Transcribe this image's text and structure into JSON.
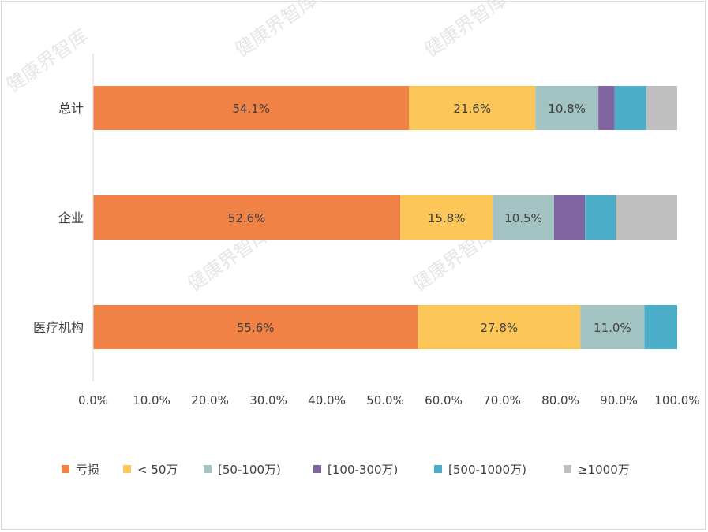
{
  "watermark_text": "健康界智库",
  "chart_data": {
    "type": "bar",
    "orientation": "horizontal",
    "stacked": true,
    "categories": [
      "总计",
      "企业",
      "医疗机构"
    ],
    "series": [
      {
        "name": "亏损",
        "color": "#f08246",
        "values": [
          54.1,
          52.6,
          55.6
        ],
        "labels": [
          "54.1%",
          "52.6%",
          "55.6%"
        ]
      },
      {
        "name": "< 50万",
        "color": "#fcc659",
        "values": [
          21.6,
          15.8,
          27.8
        ],
        "labels": [
          "21.6%",
          "15.8%",
          "27.8%"
        ]
      },
      {
        "name": "[50-100万)",
        "color": "#a3c2c2",
        "values": [
          10.8,
          10.5,
          11.0
        ],
        "labels": [
          "10.8%",
          "10.5%",
          "11.0%"
        ]
      },
      {
        "name": "[100-300万)",
        "color": "#8065a2",
        "values": [
          2.8,
          5.3,
          0
        ],
        "labels": [
          "",
          "",
          ""
        ]
      },
      {
        "name": "[500-1000万)",
        "color": "#4badc8",
        "values": [
          5.4,
          5.3,
          5.6
        ],
        "labels": [
          "",
          "",
          ""
        ]
      },
      {
        "name": "≥1000万",
        "color": "#bfbfbf",
        "values": [
          5.3,
          10.5,
          0
        ],
        "labels": [
          "",
          "",
          ""
        ]
      }
    ],
    "xlim": [
      0,
      100
    ],
    "xticks": [
      "0.0%",
      "10.0%",
      "20.0%",
      "30.0%",
      "40.0%",
      "50.0%",
      "60.0%",
      "70.0%",
      "80.0%",
      "90.0%",
      "100.0%"
    ],
    "grid": false,
    "legend_position": "bottom"
  }
}
